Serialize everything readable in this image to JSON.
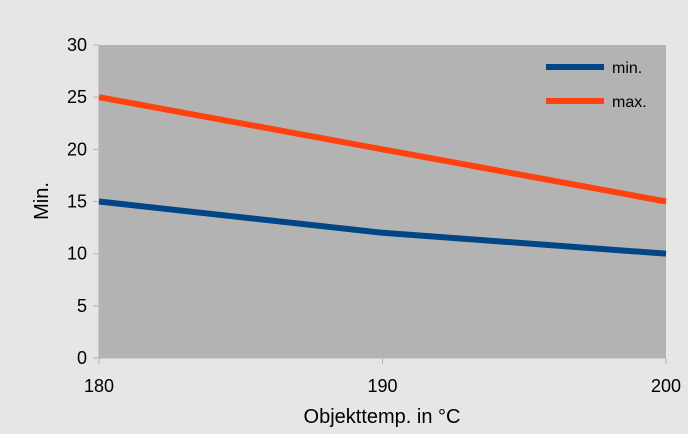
{
  "chart_data": {
    "type": "line",
    "title": "",
    "xlabel": "Objekttemp. in °C",
    "ylabel": "Min.",
    "x": [
      180,
      190,
      200
    ],
    "xlim": [
      180,
      200
    ],
    "ylim": [
      0,
      30
    ],
    "x_ticks": [
      "180",
      "190",
      "200"
    ],
    "y_ticks": [
      "0",
      "5",
      "10",
      "15",
      "20",
      "25",
      "30"
    ],
    "grid": false,
    "legend_position": "top-right",
    "series": [
      {
        "name": "min.",
        "values": [
          15,
          12,
          10
        ],
        "color": "#004586"
      },
      {
        "name": "max.",
        "values": [
          25,
          20,
          15
        ],
        "color": "#ff420e"
      }
    ],
    "plot_background": "#b3b3b3",
    "outer_background": "#e6e6e6"
  }
}
